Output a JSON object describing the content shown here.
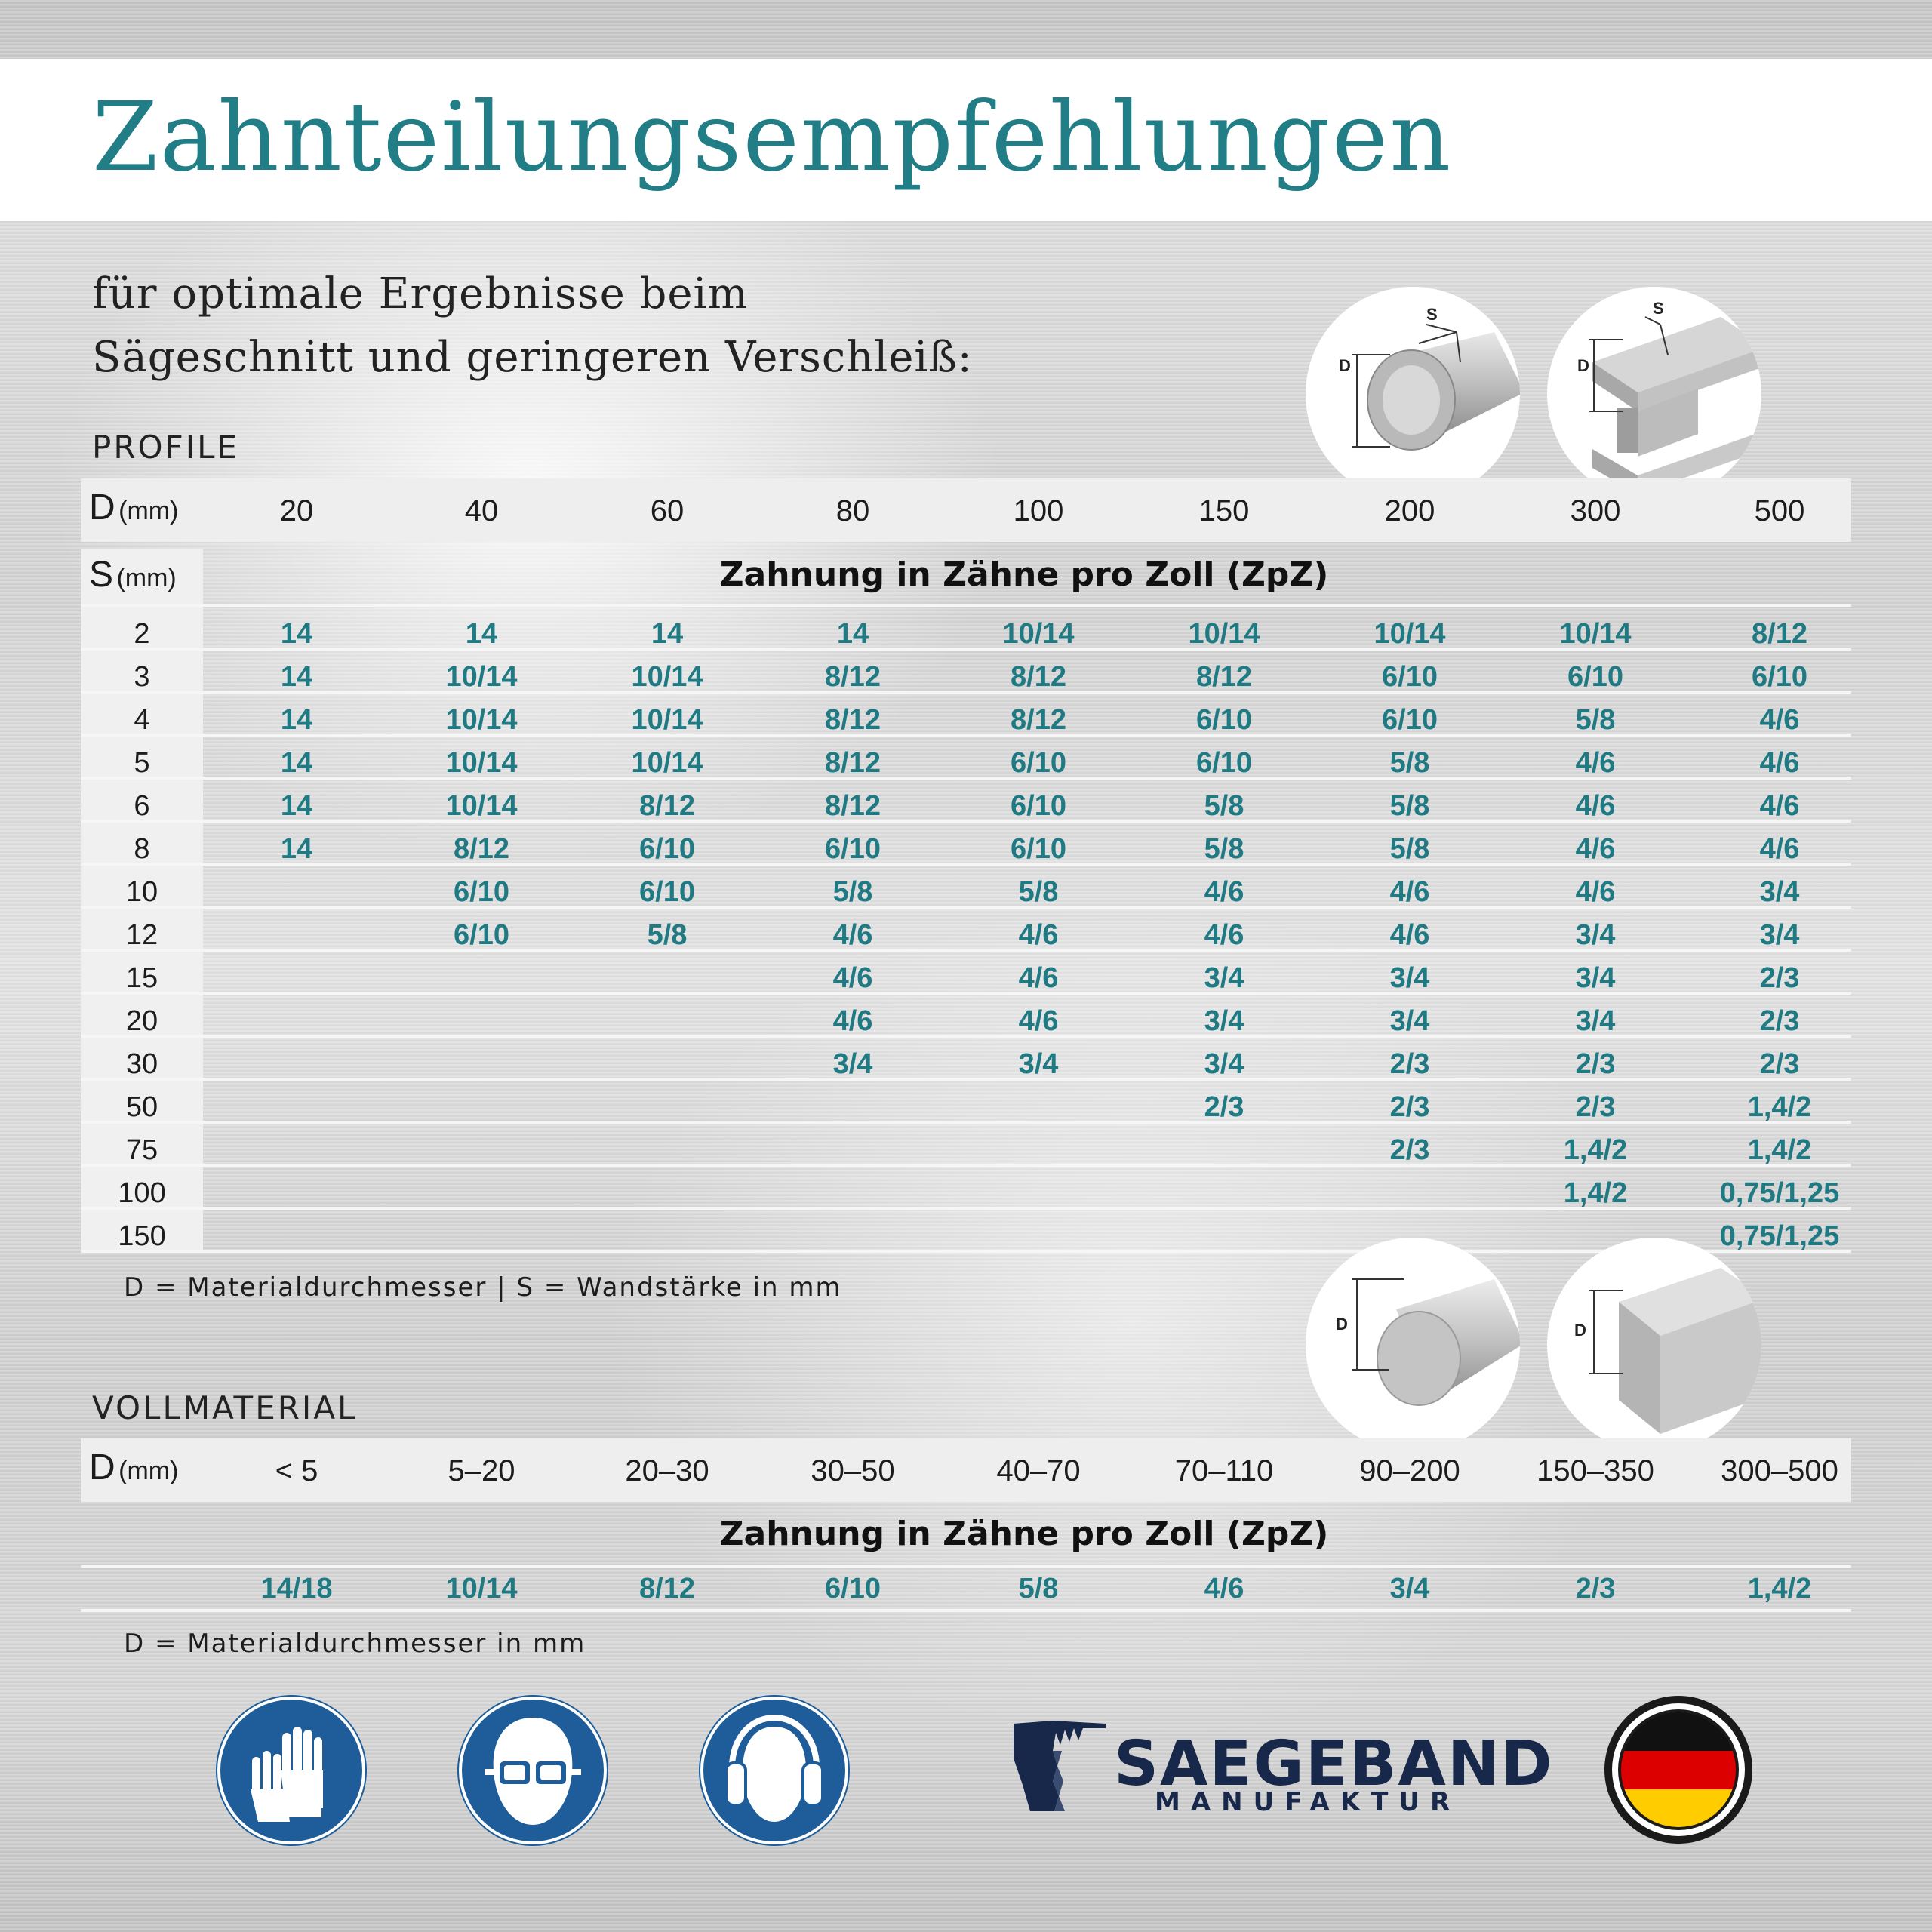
{
  "title": "Zahnteilungsempfehlungen",
  "subtitle": [
    "für optimale Ergebnisse beim",
    "Sägeschnitt und geringeren Verschleiß:"
  ],
  "profile": {
    "section_label": "PROFILE",
    "d_label": "D",
    "s_label": "S",
    "unit": "(mm)",
    "d_values": [
      "20",
      "40",
      "60",
      "80",
      "100",
      "150",
      "200",
      "300",
      "500"
    ],
    "zahnung_label": "Zahnung in Zähne pro Zoll (ZpZ)",
    "rows": [
      {
        "s": "2",
        "v": [
          "14",
          "14",
          "14",
          "14",
          "10/14",
          "10/14",
          "10/14",
          "10/14",
          "8/12"
        ]
      },
      {
        "s": "3",
        "v": [
          "14",
          "10/14",
          "10/14",
          "8/12",
          "8/12",
          "8/12",
          "6/10",
          "6/10",
          "6/10"
        ]
      },
      {
        "s": "4",
        "v": [
          "14",
          "10/14",
          "10/14",
          "8/12",
          "8/12",
          "6/10",
          "6/10",
          "5/8",
          "4/6"
        ]
      },
      {
        "s": "5",
        "v": [
          "14",
          "10/14",
          "10/14",
          "8/12",
          "6/10",
          "6/10",
          "5/8",
          "4/6",
          "4/6"
        ]
      },
      {
        "s": "6",
        "v": [
          "14",
          "10/14",
          "8/12",
          "8/12",
          "6/10",
          "5/8",
          "5/8",
          "4/6",
          "4/6"
        ]
      },
      {
        "s": "8",
        "v": [
          "14",
          "8/12",
          "6/10",
          "6/10",
          "6/10",
          "5/8",
          "5/8",
          "4/6",
          "4/6"
        ]
      },
      {
        "s": "10",
        "v": [
          "",
          "6/10",
          "6/10",
          "5/8",
          "5/8",
          "4/6",
          "4/6",
          "4/6",
          "3/4"
        ]
      },
      {
        "s": "12",
        "v": [
          "",
          "6/10",
          "5/8",
          "4/6",
          "4/6",
          "4/6",
          "4/6",
          "3/4",
          "3/4"
        ]
      },
      {
        "s": "15",
        "v": [
          "",
          "",
          "",
          "4/6",
          "4/6",
          "3/4",
          "3/4",
          "3/4",
          "2/3"
        ]
      },
      {
        "s": "20",
        "v": [
          "",
          "",
          "",
          "4/6",
          "4/6",
          "3/4",
          "3/4",
          "3/4",
          "2/3"
        ]
      },
      {
        "s": "30",
        "v": [
          "",
          "",
          "",
          "3/4",
          "3/4",
          "3/4",
          "2/3",
          "2/3",
          "2/3"
        ]
      },
      {
        "s": "50",
        "v": [
          "",
          "",
          "",
          "",
          "",
          "2/3",
          "2/3",
          "2/3",
          "1,4/2"
        ]
      },
      {
        "s": "75",
        "v": [
          "",
          "",
          "",
          "",
          "",
          "",
          "2/3",
          "1,4/2",
          "1,4/2"
        ]
      },
      {
        "s": "100",
        "v": [
          "",
          "",
          "",
          "",
          "",
          "",
          "",
          "1,4/2",
          "0,75/1,25"
        ]
      },
      {
        "s": "150",
        "v": [
          "",
          "",
          "",
          "",
          "",
          "",
          "",
          "",
          "0,75/1,25"
        ]
      }
    ],
    "note": "D = Materialdurchmesser | S = Wandstärke in mm",
    "diagram_labels": {
      "d": "D",
      "s": "S"
    }
  },
  "vollmaterial": {
    "section_label": "VOLLMATERIAL",
    "d_label": "D",
    "unit": "(mm)",
    "d_values": [
      "< 5",
      "5–20",
      "20–30",
      "30–50",
      "40–70",
      "70–110",
      "90–200",
      "150–350",
      "300–500"
    ],
    "zahnung_label": "Zahnung in Zähne pro Zoll (ZpZ)",
    "values": [
      "14/18",
      "10/14",
      "8/12",
      "6/10",
      "5/8",
      "4/6",
      "3/4",
      "2/3",
      "1,4/2"
    ],
    "note": "D = Materialdurchmesser in mm",
    "diagram_labels": {
      "d": "D"
    }
  },
  "logo": {
    "name": "SAEGEBAND",
    "sub": "MANUFAKTUR"
  },
  "icons": [
    "gloves-icon",
    "goggles-icon",
    "ear-protection-icon",
    "germany-flag-icon"
  ],
  "colors": {
    "accent": "#227e86",
    "value": "#1f7a83",
    "badge": "#1e5d99",
    "logo": "#18284a"
  }
}
